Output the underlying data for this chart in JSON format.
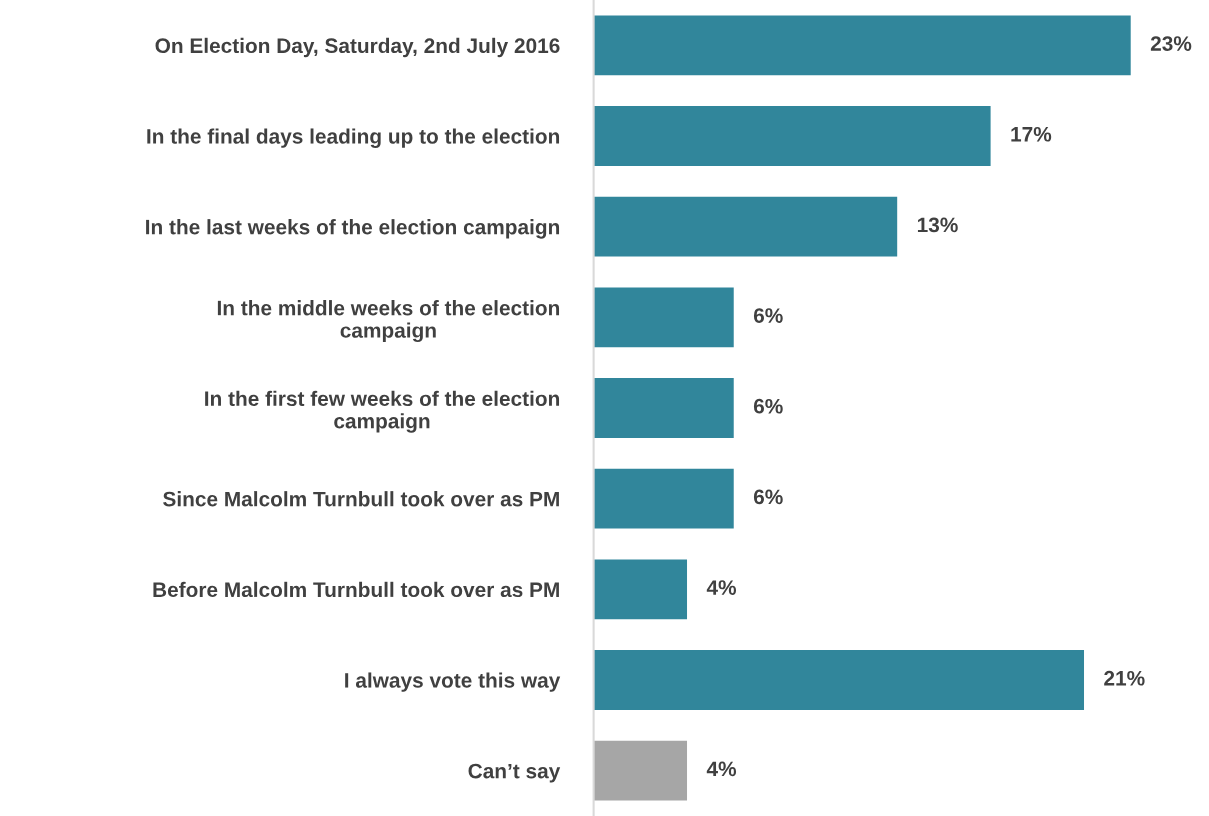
{
  "chart_data": {
    "type": "bar",
    "orientation": "horizontal",
    "categories": [
      "On Election Day, Saturday, 2nd July 2016",
      "In the final days leading up to the election",
      "In the last weeks of the election campaign",
      "In the middle weeks of the election\ncampaign",
      "In the first few weeks of the election\ncampaign",
      "Since Malcolm Turnbull took over as PM",
      "Before Malcolm Turnbull took over as PM",
      "I always vote this way",
      "Can’t say"
    ],
    "values": [
      23,
      17,
      13,
      6,
      6,
      6,
      4,
      21,
      4
    ],
    "colors": [
      "#31869b",
      "#31869b",
      "#31869b",
      "#31869b",
      "#31869b",
      "#31869b",
      "#31869b",
      "#31869b",
      "#a6a6a6"
    ],
    "value_labels": [
      "23%",
      "17%",
      "13%",
      "6%",
      "6%",
      "6%",
      "4%",
      "21%",
      "4%"
    ],
    "grid": false,
    "legend": false
  }
}
